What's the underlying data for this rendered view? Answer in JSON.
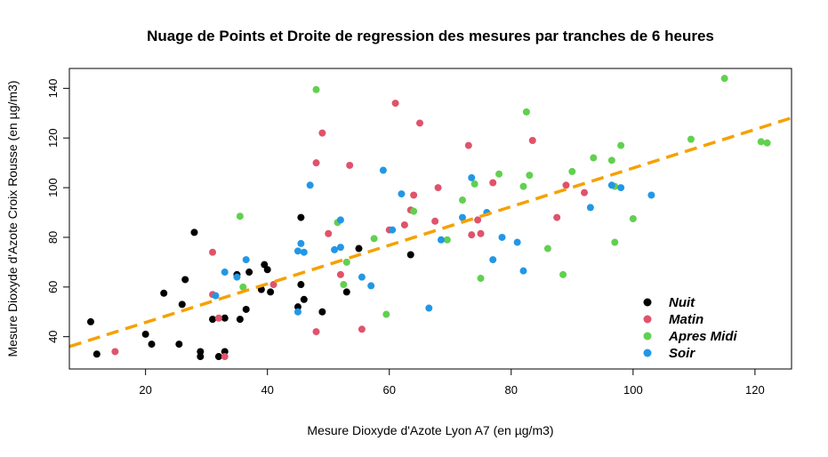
{
  "chart_data": {
    "type": "scatter",
    "title": "Nuage de Points et Droite de regression des mesures par tranches de 6 heures",
    "xlabel": "Mesure Dioxyde d'Azote Lyon A7 (en µg/m3)",
    "ylabel": "Mesure Dioxyde d'Azote Croix Rousse (en µg/m3)",
    "xlim": [
      7.5,
      126
    ],
    "ylim": [
      27,
      148
    ],
    "xticks": [
      20,
      40,
      60,
      80,
      100,
      120
    ],
    "yticks": [
      40,
      60,
      80,
      100,
      120,
      140
    ],
    "legend_position": "bottom-right",
    "regression_line": {
      "intercept": 30.2,
      "slope": 0.777,
      "color": "#f5a100",
      "style": "dashed"
    },
    "series": [
      {
        "name": "Nuit",
        "color": "#000000",
        "points": [
          [
            11,
            46
          ],
          [
            12,
            33
          ],
          [
            20,
            41
          ],
          [
            21,
            37
          ],
          [
            23,
            57.5
          ],
          [
            25.5,
            37
          ],
          [
            26,
            53
          ],
          [
            26.5,
            63
          ],
          [
            28,
            82
          ],
          [
            29,
            34
          ],
          [
            29,
            32
          ],
          [
            31,
            47
          ],
          [
            32,
            32
          ],
          [
            33,
            47.5
          ],
          [
            33,
            34
          ],
          [
            35,
            65
          ],
          [
            35.5,
            47
          ],
          [
            36.5,
            51
          ],
          [
            37,
            66
          ],
          [
            39,
            59
          ],
          [
            39.5,
            69
          ],
          [
            40,
            67
          ],
          [
            40.5,
            58
          ],
          [
            45,
            52
          ],
          [
            45.5,
            88
          ],
          [
            45.5,
            61
          ],
          [
            46,
            55
          ],
          [
            49,
            50
          ],
          [
            53,
            58
          ],
          [
            55,
            75.5
          ],
          [
            63.5,
            73
          ]
        ]
      },
      {
        "name": "Matin",
        "color": "#df536b",
        "points": [
          [
            15,
            34
          ],
          [
            31,
            74
          ],
          [
            31,
            57
          ],
          [
            32,
            47.5
          ],
          [
            33,
            32
          ],
          [
            41,
            61
          ],
          [
            48,
            110
          ],
          [
            48,
            42
          ],
          [
            49,
            122
          ],
          [
            50,
            81.5
          ],
          [
            52,
            65
          ],
          [
            53.5,
            109
          ],
          [
            55.5,
            43
          ],
          [
            60,
            83
          ],
          [
            61,
            134
          ],
          [
            62.5,
            85
          ],
          [
            63.5,
            91
          ],
          [
            64,
            97
          ],
          [
            65,
            126
          ],
          [
            67.5,
            86.5
          ],
          [
            68,
            100
          ],
          [
            73,
            117
          ],
          [
            73.5,
            81
          ],
          [
            74.5,
            87
          ],
          [
            75,
            81.5
          ],
          [
            77,
            102
          ],
          [
            83.5,
            119
          ],
          [
            87.5,
            88
          ],
          [
            89,
            101
          ],
          [
            92,
            98
          ]
        ]
      },
      {
        "name": "Apres Midi",
        "color": "#61d04f",
        "points": [
          [
            35.5,
            88.5
          ],
          [
            36,
            60
          ],
          [
            48,
            139.5
          ],
          [
            51.5,
            86
          ],
          [
            52.5,
            61
          ],
          [
            53,
            70
          ],
          [
            57.5,
            79.5
          ],
          [
            59.5,
            49
          ],
          [
            64,
            90.5
          ],
          [
            69.5,
            79
          ],
          [
            72,
            95
          ],
          [
            74,
            101.5
          ],
          [
            75,
            63.5
          ],
          [
            78,
            105.5
          ],
          [
            82,
            100.5
          ],
          [
            82.5,
            130.5
          ],
          [
            83,
            105
          ],
          [
            86,
            75.5
          ],
          [
            88.5,
            65
          ],
          [
            90,
            106.5
          ],
          [
            93.5,
            112
          ],
          [
            96.5,
            111
          ],
          [
            97,
            78
          ],
          [
            97,
            100.5
          ],
          [
            98,
            117
          ],
          [
            100,
            87.5
          ],
          [
            109.5,
            119.5
          ],
          [
            115,
            144
          ],
          [
            121,
            118.5
          ],
          [
            122,
            118
          ]
        ]
      },
      {
        "name": "Soir",
        "color": "#2297e6",
        "points": [
          [
            31.5,
            56.5
          ],
          [
            33,
            66
          ],
          [
            35,
            64
          ],
          [
            36.5,
            71
          ],
          [
            45,
            74.5
          ],
          [
            45,
            50
          ],
          [
            45.5,
            77.5
          ],
          [
            46,
            74
          ],
          [
            47,
            101
          ],
          [
            51,
            75
          ],
          [
            52,
            87
          ],
          [
            52,
            76
          ],
          [
            55.5,
            64
          ],
          [
            57,
            60.5
          ],
          [
            59,
            107
          ],
          [
            60.5,
            83
          ],
          [
            62,
            97.5
          ],
          [
            66.5,
            51.5
          ],
          [
            68.5,
            79
          ],
          [
            72,
            88
          ],
          [
            73.5,
            104
          ],
          [
            76,
            90
          ],
          [
            77,
            71
          ],
          [
            78.5,
            80
          ],
          [
            81,
            78
          ],
          [
            82,
            66.5
          ],
          [
            93,
            92
          ],
          [
            96.5,
            101
          ],
          [
            98,
            100
          ],
          [
            103,
            97
          ]
        ]
      }
    ]
  }
}
